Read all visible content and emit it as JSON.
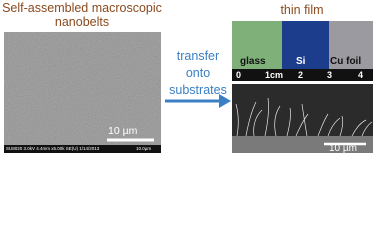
{
  "left": {
    "title_line1": "Self-assembled macroscopic",
    "title_line2": "nanobelts",
    "scale_bar": "10 µm",
    "sem_info": "SU8020 3.0kV 4.4mm x5.00k SE(U) 1/14/2013",
    "sem_scale": "10.0µm"
  },
  "middle": {
    "line1": "transfer",
    "line2": "onto",
    "line3": "substrates"
  },
  "right": {
    "title": "thin film",
    "substrates": [
      "glass",
      "Si",
      "Cu foil"
    ],
    "ruler": [
      "0",
      "1cm",
      "2",
      "3",
      "4"
    ],
    "scale_bar": "10 µm"
  }
}
